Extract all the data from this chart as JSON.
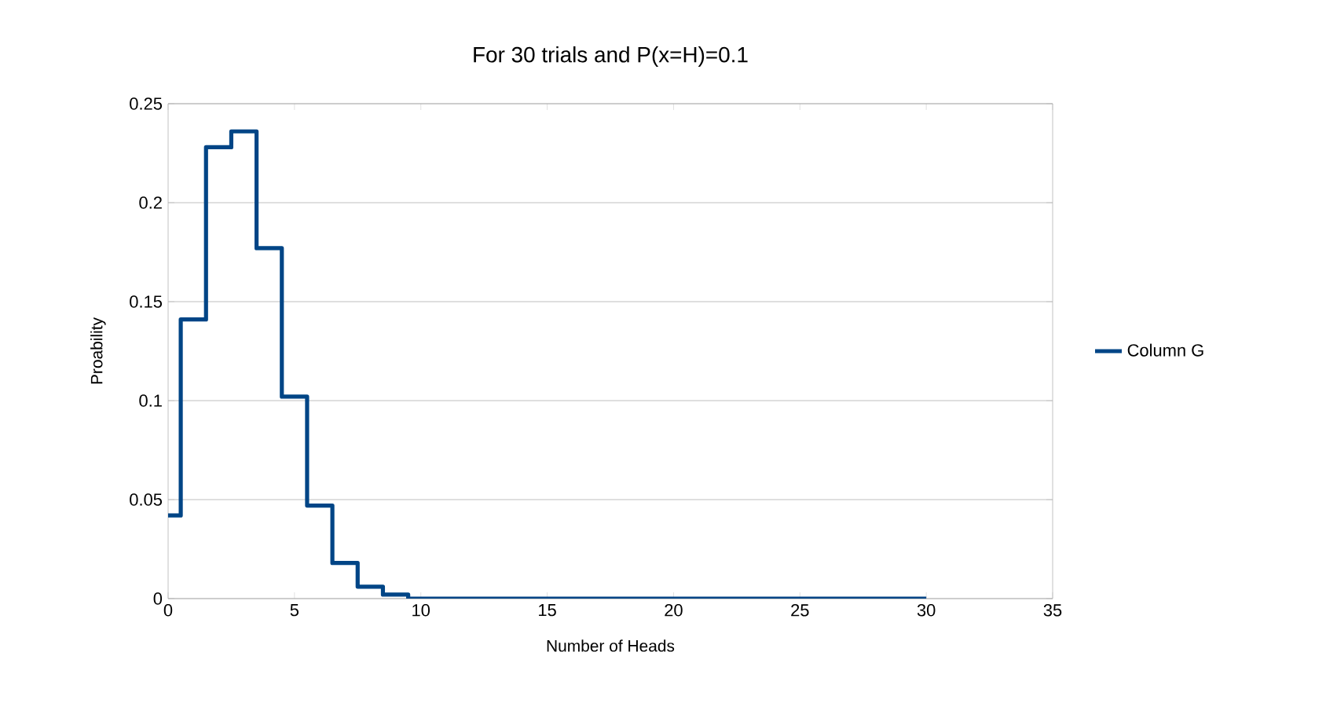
{
  "chart_data": {
    "type": "step",
    "title": "For 30 trials and P(x=H)=0.1",
    "xlabel": "Number of Heads",
    "ylabel": "Proability",
    "x": [
      0,
      1,
      2,
      3,
      4,
      5,
      6,
      7,
      8,
      9,
      10,
      11,
      12,
      13,
      14,
      15,
      16,
      17,
      18,
      19,
      20,
      21,
      22,
      23,
      24,
      25,
      26,
      27,
      28,
      29,
      30
    ],
    "series": [
      {
        "name": "Column G",
        "color": "#004586",
        "values": [
          0.042,
          0.141,
          0.228,
          0.236,
          0.177,
          0.102,
          0.047,
          0.018,
          0.006,
          0.002,
          0,
          0,
          0,
          0,
          0,
          0,
          0,
          0,
          0,
          0,
          0,
          0,
          0,
          0,
          0,
          0,
          0,
          0,
          0,
          0,
          0
        ]
      }
    ],
    "xlim": [
      0,
      35
    ],
    "ylim": [
      0,
      0.25
    ],
    "xticks": [
      0,
      5,
      10,
      15,
      20,
      25,
      30,
      35
    ],
    "yticks": [
      0,
      0.05,
      0.1,
      0.15,
      0.2,
      0.25
    ],
    "grid": "y",
    "legend": "right",
    "marker": "none",
    "line_style": "solid"
  }
}
